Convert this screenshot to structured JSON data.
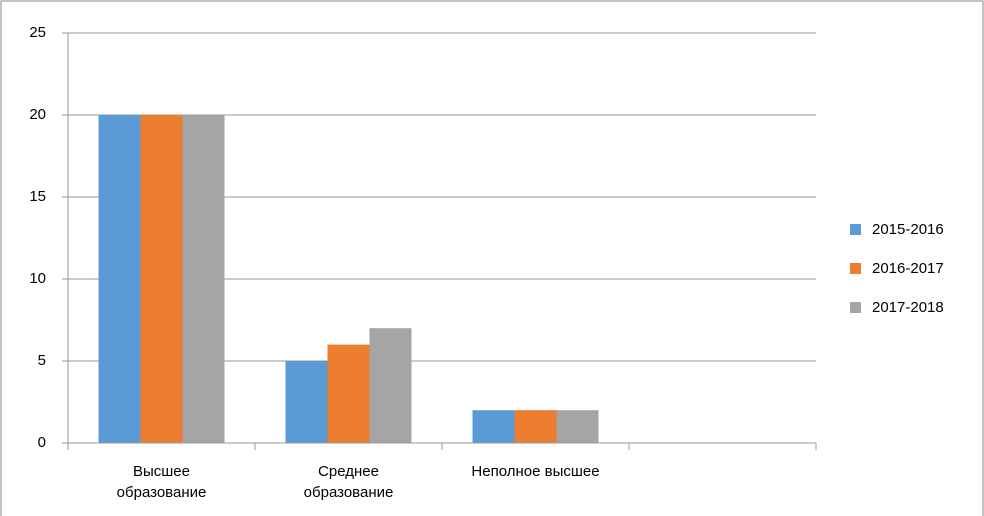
{
  "chart_data": {
    "type": "bar",
    "categories": [
      "Высшее образование",
      "Среднее образование",
      "Неполное высшее",
      null
    ],
    "series": [
      {
        "name": "2015-2016",
        "color": "#5b9bd5",
        "values": [
          20,
          5,
          2,
          null
        ]
      },
      {
        "name": "2016-2017",
        "color": "#ed7d31",
        "values": [
          20,
          6,
          2,
          null
        ]
      },
      {
        "name": "2017-2018",
        "color": "#a5a5a5",
        "values": [
          20,
          7,
          2,
          null
        ]
      }
    ],
    "ylim": [
      0,
      25
    ],
    "yticks": [
      0,
      5,
      10,
      15,
      20,
      25
    ],
    "grid": true,
    "legend": "right"
  }
}
